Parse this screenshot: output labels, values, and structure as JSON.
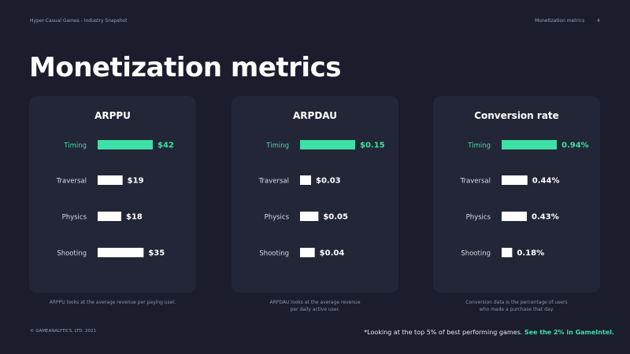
{
  "header": {
    "left": "Hyper-Casual Games - Industry Snapshot",
    "section": "Monetization metrics",
    "page_number": "4"
  },
  "title": "Monetization metrics",
  "colors": {
    "highlight": "#3ee0a5",
    "bar": "#ffffff",
    "card_bg": "#232637",
    "page_bg": "#1b1d2c"
  },
  "chart_data": [
    {
      "type": "bar",
      "orientation": "horizontal",
      "title": "ARPPU",
      "categories": [
        "Timing",
        "Traversal",
        "Physics",
        "Shooting"
      ],
      "values": [
        42,
        19,
        18,
        35
      ],
      "labels": [
        "$42",
        "$19",
        "$18",
        "$35"
      ],
      "highlight": "Timing",
      "xlim": [
        0,
        60
      ]
    },
    {
      "type": "bar",
      "orientation": "horizontal",
      "title": "ARPDAU",
      "categories": [
        "Timing",
        "Traversal",
        "Physics",
        "Shooting"
      ],
      "values": [
        0.15,
        0.03,
        0.05,
        0.04
      ],
      "labels": [
        "$0.15",
        "$0.03",
        "$0.05",
        "$0.04"
      ],
      "highlight": "Timing",
      "xlim": [
        0,
        0.2
      ]
    },
    {
      "type": "bar",
      "orientation": "horizontal",
      "title": "Conversion rate",
      "categories": [
        "Timing",
        "Traversal",
        "Physics",
        "Shooting"
      ],
      "values": [
        0.94,
        0.44,
        0.43,
        0.18
      ],
      "labels": [
        "0.94%",
        "0.44%",
        "0.43%",
        "0.18%"
      ],
      "highlight": "Timing",
      "xlim": [
        0,
        1.2
      ]
    }
  ],
  "notes": [
    "ARPPU looks at the average revenue per paying user.",
    "ARPDAU looks at the average revenue\nper daily active user.",
    "Conversion data is the percentage of users\nwho made a purchase that day."
  ],
  "footer": {
    "copyright": "© GAMEANALYTICS, LTD. 2021",
    "footnote": "*Looking at the top 5% of best performing games.",
    "footnote_link": "See the 2% in GameIntel."
  }
}
